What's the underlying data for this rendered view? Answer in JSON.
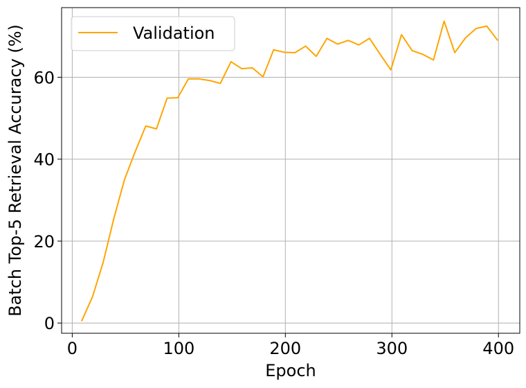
{
  "chart_data": {
    "type": "line",
    "xlabel": "Epoch",
    "ylabel": "Batch Top-5 Retrieval Accuracy (%)",
    "xlim": [
      -10,
      420
    ],
    "ylim": [
      -2.5,
      77
    ],
    "xticks": [
      0,
      100,
      200,
      300,
      400
    ],
    "yticks": [
      0,
      20,
      40,
      60
    ],
    "grid": true,
    "legend": "upper-left",
    "series": [
      {
        "name": "Validation",
        "color": "#ffa500",
        "x": [
          9,
          19,
          29,
          39,
          49,
          59,
          69,
          79,
          89,
          99,
          109,
          119,
          129,
          139,
          149,
          159,
          169,
          179,
          189,
          199,
          209,
          219,
          229,
          239,
          249,
          259,
          269,
          279,
          289,
          299,
          309,
          319,
          329,
          339,
          349,
          359,
          369,
          379,
          389,
          399
        ],
        "values": [
          0.6,
          6.4,
          14.8,
          25.5,
          35.0,
          41.8,
          48.1,
          47.4,
          54.9,
          55.0,
          59.6,
          59.6,
          59.2,
          58.5,
          63.8,
          62.1,
          62.3,
          60.1,
          66.7,
          66.1,
          66.0,
          67.6,
          65.1,
          69.5,
          68.1,
          69.0,
          67.9,
          69.5,
          65.6,
          61.8,
          70.4,
          66.5,
          65.6,
          64.2,
          73.7,
          66.0,
          69.6,
          71.9,
          72.5,
          69.1
        ]
      }
    ]
  }
}
